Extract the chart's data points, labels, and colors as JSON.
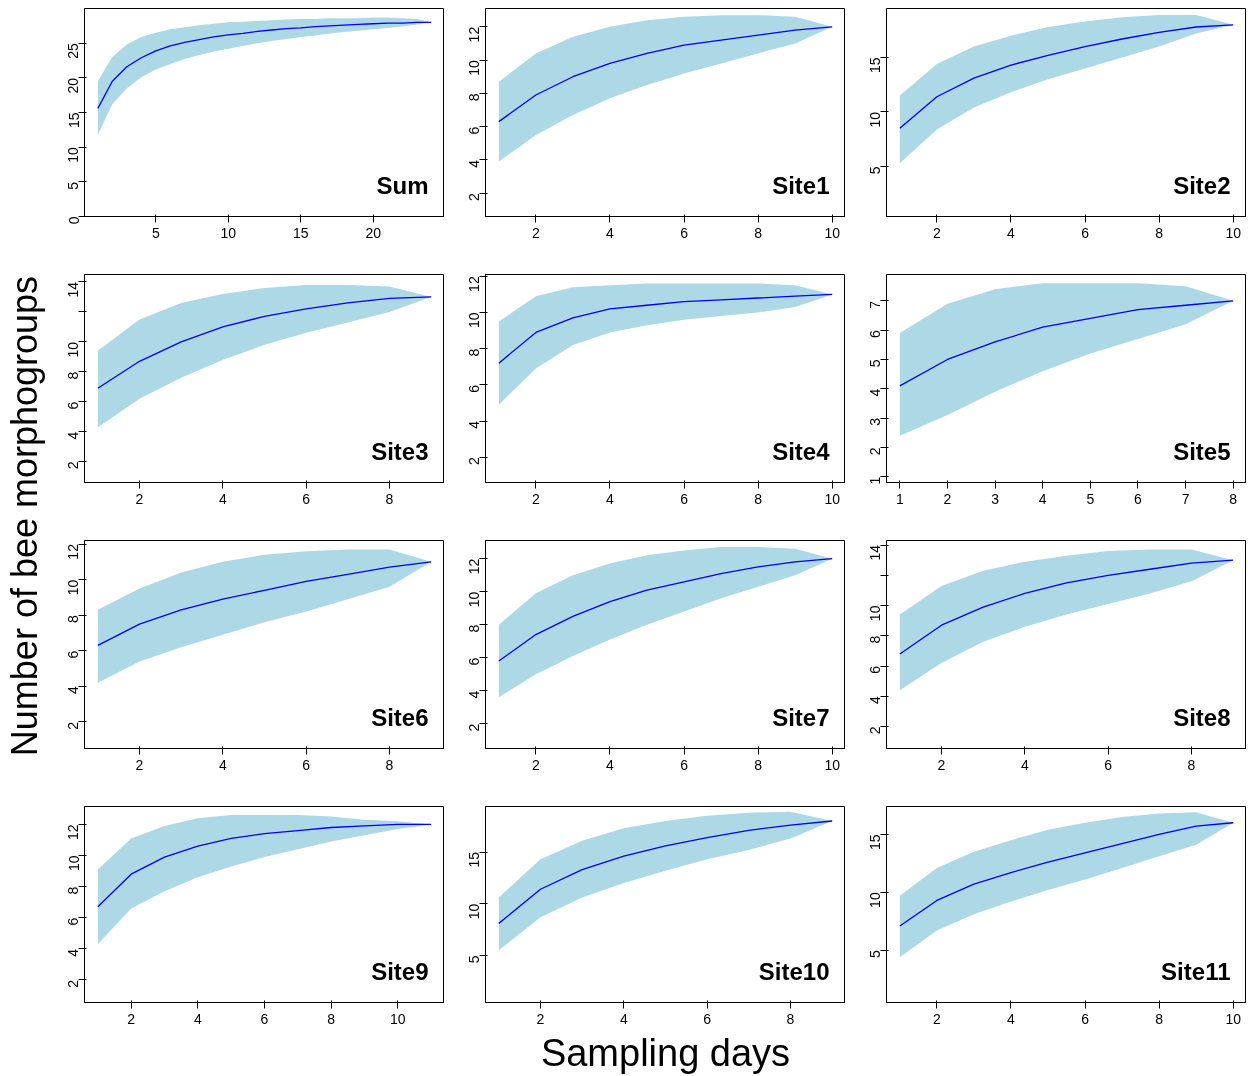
{
  "chart_data": [
    {
      "type": "line",
      "annotations": [
        "Sum"
      ],
      "x": [
        1,
        2,
        3,
        4,
        5,
        6,
        7,
        8,
        9,
        10,
        11,
        12,
        13,
        14,
        15,
        16,
        17,
        18,
        19,
        20,
        21,
        22,
        23,
        24
      ],
      "xlim": [
        0.08,
        24.92
      ],
      "xticks": [
        5,
        10,
        15,
        20
      ],
      "ylim": [
        0,
        30
      ],
      "yticks": [
        0,
        5,
        10,
        15,
        20,
        25
      ],
      "series": [
        {
          "color": "#0000ff",
          "values": [
            15.6,
            19.5,
            21.6,
            22.9,
            23.9,
            24.6,
            25.1,
            25.5,
            25.9,
            26.2,
            26.4,
            26.7,
            26.9,
            27.1,
            27.2,
            27.4,
            27.5,
            27.6,
            27.7,
            27.8,
            27.9,
            27.9,
            28,
            28
          ],
          "lower": [
            11.8,
            16.2,
            18.5,
            20.1,
            21.2,
            22,
            22.7,
            23.3,
            23.8,
            24.2,
            24.6,
            25,
            25.3,
            25.6,
            25.9,
            26.1,
            26.4,
            26.6,
            26.8,
            27,
            27.2,
            27.4,
            27.7,
            28
          ],
          "upper": [
            19.5,
            23,
            24.8,
            25.9,
            26.5,
            27,
            27.3,
            27.6,
            27.8,
            28,
            28.1,
            28.2,
            28.3,
            28.4,
            28.5,
            28.5,
            28.6,
            28.6,
            28.6,
            28.7,
            28.7,
            28.6,
            28.5,
            28
          ]
        }
      ]
    },
    {
      "type": "line",
      "annotations": [
        "Site1"
      ],
      "x": [
        1,
        2,
        3,
        4,
        5,
        6,
        7,
        8,
        9,
        10
      ],
      "xlim": [
        0.64,
        10.36
      ],
      "xticks": [
        2,
        4,
        6,
        8,
        10
      ],
      "ylim": [
        0.6,
        13.1
      ],
      "yticks": [
        2,
        4,
        6,
        8,
        10,
        12
      ],
      "series": [
        {
          "color": "#0000ff",
          "values": [
            6.3,
            7.9,
            9,
            9.8,
            10.4,
            10.9,
            11.2,
            11.5,
            11.8,
            12
          ],
          "lower": [
            3.9,
            5.5,
            6.7,
            7.7,
            8.5,
            9.2,
            9.8,
            10.4,
            11,
            12
          ],
          "upper": [
            8.7,
            10.4,
            11.4,
            12,
            12.4,
            12.6,
            12.7,
            12.7,
            12.6,
            12
          ]
        }
      ]
    },
    {
      "type": "line",
      "annotations": [
        "Site2"
      ],
      "x": [
        1,
        2,
        3,
        4,
        5,
        6,
        7,
        8,
        9,
        10
      ],
      "xlim": [
        0.64,
        10.36
      ],
      "xticks": [
        2,
        4,
        6,
        8,
        10
      ],
      "ylim": [
        0.4,
        19.5
      ],
      "yticks": [
        5,
        10,
        15
      ],
      "series": [
        {
          "color": "#0000ff",
          "values": [
            8.5,
            11.4,
            13.1,
            14.3,
            15.2,
            16,
            16.7,
            17.3,
            17.8,
            18
          ],
          "lower": [
            5.3,
            8.4,
            10.4,
            11.8,
            13,
            14,
            15,
            16,
            17.2,
            18
          ],
          "upper": [
            11.5,
            14.4,
            16,
            17,
            17.8,
            18.3,
            18.7,
            18.9,
            18.9,
            18
          ]
        }
      ]
    },
    {
      "type": "line",
      "annotations": [
        "Site3"
      ],
      "ylabel": "Number of bee morphogroups",
      "x": [
        1,
        2,
        3,
        4,
        5,
        6,
        7,
        8,
        9
      ],
      "xlim": [
        0.68,
        9.32
      ],
      "xticks": [
        2,
        4,
        6,
        8
      ],
      "ylim": [
        0.6,
        14.5
      ],
      "yticks": [
        2,
        4,
        6,
        8,
        10,
        {
          "value": 12,
          "label": null
        },
        14
      ],
      "series": [
        {
          "color": "#0000ff",
          "values": [
            6.9,
            8.7,
            10,
            11,
            11.7,
            12.2,
            12.6,
            12.9,
            13
          ],
          "lower": [
            4.3,
            6.2,
            7.6,
            8.8,
            9.8,
            10.6,
            11.3,
            12,
            13
          ],
          "upper": [
            9.4,
            11.5,
            12.6,
            13.2,
            13.6,
            13.8,
            13.8,
            13.7,
            13
          ]
        }
      ]
    },
    {
      "type": "line",
      "annotations": [
        "Site4"
      ],
      "x": [
        1,
        2,
        3,
        4,
        5,
        6,
        7,
        8,
        9,
        10
      ],
      "xlim": [
        0.64,
        10.36
      ],
      "xticks": [
        2,
        4,
        6,
        8,
        10
      ],
      "ylim": [
        0.6,
        12.1
      ],
      "yticks": [
        2,
        4,
        6,
        8,
        10,
        12
      ],
      "series": [
        {
          "color": "#0000ff",
          "values": [
            7.2,
            8.9,
            9.7,
            10.2,
            10.4,
            10.6,
            10.7,
            10.8,
            10.9,
            11
          ],
          "lower": [
            4.9,
            6.9,
            8.2,
            8.9,
            9.3,
            9.6,
            9.8,
            10,
            10.3,
            11
          ],
          "upper": [
            9.5,
            10.9,
            11.4,
            11.5,
            11.6,
            11.6,
            11.6,
            11.6,
            11.5,
            11
          ]
        }
      ]
    },
    {
      "type": "line",
      "annotations": [
        "Site5"
      ],
      "x": [
        1,
        2,
        3,
        4,
        5,
        6,
        7,
        8
      ],
      "xlim": [
        0.72,
        8.28
      ],
      "xticks": [
        1,
        2,
        3,
        4,
        5,
        6,
        7,
        8
      ],
      "ylim": [
        0.8,
        7.9
      ],
      "yticks": [
        1,
        2,
        3,
        4,
        5,
        6,
        7
      ],
      "series": [
        {
          "color": "#0000ff",
          "values": [
            4.1,
            5,
            5.6,
            6.1,
            6.4,
            6.7,
            6.85,
            7
          ],
          "lower": [
            2.4,
            3.1,
            3.9,
            4.6,
            5.2,
            5.7,
            6.2,
            7
          ],
          "upper": [
            5.9,
            6.9,
            7.4,
            7.6,
            7.6,
            7.6,
            7.5,
            7
          ]
        }
      ]
    },
    {
      "type": "line",
      "annotations": [
        "Site6"
      ],
      "x": [
        1,
        2,
        3,
        4,
        5,
        6,
        7,
        8,
        9
      ],
      "xlim": [
        0.68,
        9.32
      ],
      "xticks": [
        2,
        4,
        6,
        8
      ],
      "ylim": [
        0.5,
        12.2
      ],
      "yticks": [
        2,
        4,
        6,
        8,
        10,
        12
      ],
      "series": [
        {
          "color": "#0000ff",
          "values": [
            6.3,
            7.5,
            8.3,
            8.9,
            9.4,
            9.9,
            10.3,
            10.7,
            11
          ],
          "lower": [
            4.2,
            5.4,
            6.2,
            6.9,
            7.6,
            8.2,
            8.9,
            9.6,
            11
          ],
          "upper": [
            8.3,
            9.5,
            10.4,
            11,
            11.4,
            11.6,
            11.7,
            11.7,
            11
          ]
        }
      ]
    },
    {
      "type": "line",
      "annotations": [
        "Site7"
      ],
      "x": [
        1,
        2,
        3,
        4,
        5,
        6,
        7,
        8,
        9,
        10
      ],
      "xlim": [
        0.64,
        10.36
      ],
      "xticks": [
        2,
        4,
        6,
        8,
        10
      ],
      "ylim": [
        0.5,
        13.1
      ],
      "yticks": [
        2,
        4,
        6,
        8,
        10,
        12
      ],
      "series": [
        {
          "color": "#0000ff",
          "values": [
            5.8,
            7.4,
            8.5,
            9.4,
            10.1,
            10.6,
            11.1,
            11.5,
            11.8,
            12
          ],
          "lower": [
            3.6,
            5,
            6.1,
            7.1,
            8,
            8.8,
            9.6,
            10.3,
            11,
            12
          ],
          "upper": [
            8,
            9.9,
            11,
            11.7,
            12.2,
            12.5,
            12.7,
            12.7,
            12.6,
            12
          ]
        }
      ]
    },
    {
      "type": "line",
      "annotations": [
        "Site8"
      ],
      "x": [
        1,
        2,
        3,
        4,
        5,
        6,
        7,
        8,
        9
      ],
      "xlim": [
        0.68,
        9.32
      ],
      "xticks": [
        2,
        4,
        6,
        8
      ],
      "ylim": [
        0.55,
        14.3
      ],
      "yticks": [
        2,
        4,
        6,
        8,
        10,
        {
          "value": 12,
          "label": null
        },
        14
      ],
      "series": [
        {
          "color": "#0000ff",
          "values": [
            6.8,
            8.7,
            9.9,
            10.8,
            11.5,
            12,
            12.4,
            12.8,
            13
          ],
          "lower": [
            4.4,
            6.2,
            7.6,
            8.6,
            9.4,
            10.1,
            10.8,
            11.6,
            13
          ],
          "upper": [
            9.4,
            11.3,
            12.3,
            12.9,
            13.3,
            13.6,
            13.7,
            13.7,
            13
          ]
        }
      ]
    },
    {
      "type": "line",
      "annotations": [
        "Site9"
      ],
      "x": [
        1,
        2,
        3,
        4,
        5,
        6,
        7,
        8,
        9,
        10,
        11
      ],
      "xlim": [
        0.6,
        11.4
      ],
      "xticks": [
        2,
        4,
        6,
        8,
        10
      ],
      "ylim": [
        0.55,
        13.15
      ],
      "yticks": [
        2,
        4,
        6,
        8,
        10,
        12
      ],
      "series": [
        {
          "color": "#0000ff",
          "values": [
            6.7,
            8.8,
            9.9,
            10.6,
            11.1,
            11.4,
            11.6,
            11.8,
            11.9,
            12,
            12
          ],
          "lower": [
            4.3,
            6.6,
            7.7,
            8.6,
            9.3,
            9.9,
            10.4,
            10.9,
            11.3,
            11.7,
            12
          ],
          "upper": [
            9.1,
            11.1,
            11.9,
            12.4,
            12.6,
            12.6,
            12.6,
            12.5,
            12.3,
            12.2,
            12
          ]
        }
      ]
    },
    {
      "type": "line",
      "annotations": [
        "Site10"
      ],
      "xlabel": "Sampling days",
      "x": [
        1,
        2,
        3,
        4,
        5,
        6,
        7,
        8,
        9
      ],
      "xlim": [
        0.68,
        9.32
      ],
      "xticks": [
        2,
        4,
        6,
        8
      ],
      "ylim": [
        0.45,
        19.4
      ],
      "yticks": [
        5,
        10,
        15
      ],
      "series": [
        {
          "color": "#0000ff",
          "values": [
            8.1,
            11.4,
            13.3,
            14.6,
            15.6,
            16.4,
            17.1,
            17.6,
            18
          ],
          "lower": [
            5.5,
            8.7,
            10.6,
            12,
            13.2,
            14.3,
            15.2,
            16.3,
            18
          ],
          "upper": [
            10.6,
            14.3,
            16.1,
            17.3,
            18,
            18.5,
            18.8,
            18.9,
            18
          ]
        }
      ]
    },
    {
      "type": "line",
      "annotations": [
        "Site11"
      ],
      "x": [
        1,
        2,
        3,
        4,
        5,
        6,
        7,
        8,
        9,
        10
      ],
      "xlim": [
        0.64,
        10.36
      ],
      "xticks": [
        2,
        4,
        6,
        8,
        10
      ],
      "ylim": [
        0.5,
        17.4
      ],
      "yticks": [
        5,
        10,
        15
      ],
      "series": [
        {
          "color": "#0000ff",
          "values": [
            7.1,
            9.3,
            10.7,
            11.7,
            12.6,
            13.4,
            14.2,
            15,
            15.7,
            16
          ],
          "lower": [
            4.4,
            6.7,
            8.1,
            9.2,
            10.2,
            11.1,
            12.1,
            13.1,
            14.1,
            16
          ],
          "upper": [
            9.7,
            12.1,
            13.5,
            14.5,
            15.4,
            16,
            16.5,
            16.8,
            16.9,
            16
          ]
        }
      ]
    }
  ]
}
